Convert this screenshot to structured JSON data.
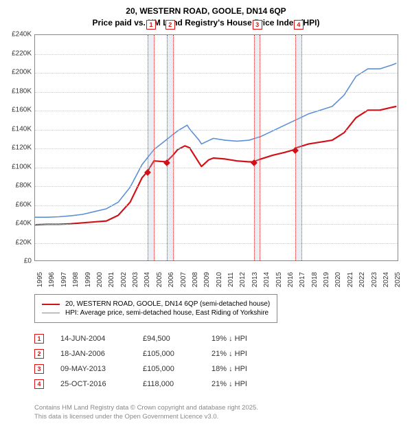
{
  "title": {
    "line1": "20, WESTERN ROAD, GOOLE, DN14 6QP",
    "line2": "Price paid vs. HM Land Registry's House Price Index (HPI)",
    "fontsize": 12
  },
  "chart": {
    "type": "line",
    "background_color": "#ffffff",
    "grid_color": "#cccccc",
    "border_color": "#888888",
    "x": {
      "min": 1995,
      "max": 2025.5,
      "ticks": [
        1995,
        1996,
        1997,
        1998,
        1999,
        2000,
        2001,
        2002,
        2003,
        2004,
        2005,
        2006,
        2007,
        2008,
        2009,
        2010,
        2011,
        2012,
        2013,
        2014,
        2015,
        2016,
        2017,
        2018,
        2019,
        2020,
        2021,
        2022,
        2023,
        2024,
        2025
      ],
      "label_fontsize": 10
    },
    "y": {
      "min": 0,
      "max": 240000,
      "ticks": [
        0,
        20000,
        40000,
        60000,
        80000,
        100000,
        120000,
        140000,
        160000,
        180000,
        200000,
        220000,
        240000
      ],
      "tick_labels": [
        "£0",
        "£20K",
        "£40K",
        "£60K",
        "£80K",
        "£100K",
        "£120K",
        "£140K",
        "£160K",
        "£180K",
        "£200K",
        "£220K",
        "£240K"
      ],
      "label_fontsize": 10
    },
    "series": [
      {
        "name": "property",
        "label": "20, WESTERN ROAD, GOOLE, DN14 6QP (semi-detached house)",
        "color": "#d11117",
        "width": 2.2,
        "points": [
          [
            1995,
            38000
          ],
          [
            1996,
            38500
          ],
          [
            1997,
            38500
          ],
          [
            1998,
            39000
          ],
          [
            1999,
            40000
          ],
          [
            2000,
            41000
          ],
          [
            2001,
            42000
          ],
          [
            2002,
            48000
          ],
          [
            2003,
            62000
          ],
          [
            2004,
            88000
          ],
          [
            2004.45,
            94500
          ],
          [
            2005,
            106000
          ],
          [
            2006.05,
            105000
          ],
          [
            2006.6,
            112000
          ],
          [
            2007,
            118000
          ],
          [
            2007.6,
            122000
          ],
          [
            2008,
            120000
          ],
          [
            2008.6,
            108000
          ],
          [
            2009,
            100000
          ],
          [
            2009.6,
            107000
          ],
          [
            2010,
            109000
          ],
          [
            2011,
            108000
          ],
          [
            2012,
            106000
          ],
          [
            2013,
            105000
          ],
          [
            2013.35,
            105000
          ],
          [
            2014,
            108000
          ],
          [
            2015,
            112000
          ],
          [
            2016,
            115000
          ],
          [
            2016.82,
            118000
          ],
          [
            2017,
            120000
          ],
          [
            2018,
            124000
          ],
          [
            2019,
            126000
          ],
          [
            2020,
            128000
          ],
          [
            2021,
            136000
          ],
          [
            2022,
            152000
          ],
          [
            2023,
            160000
          ],
          [
            2024,
            160000
          ],
          [
            2025,
            163000
          ],
          [
            2025.4,
            164000
          ]
        ],
        "markers": [
          {
            "x": 2004.45,
            "y": 94500
          },
          {
            "x": 2006.05,
            "y": 105000
          },
          {
            "x": 2013.35,
            "y": 105000
          },
          {
            "x": 2016.82,
            "y": 118000
          }
        ]
      },
      {
        "name": "hpi",
        "label": "HPI: Average price, semi-detached house, East Riding of Yorkshire",
        "color": "#5b8fd6",
        "width": 1.6,
        "points": [
          [
            1995,
            46000
          ],
          [
            1996,
            46000
          ],
          [
            1997,
            46500
          ],
          [
            1998,
            47500
          ],
          [
            1999,
            49000
          ],
          [
            2000,
            52000
          ],
          [
            2001,
            55000
          ],
          [
            2002,
            62000
          ],
          [
            2003,
            78000
          ],
          [
            2004,
            102000
          ],
          [
            2005,
            118000
          ],
          [
            2006,
            128000
          ],
          [
            2007,
            138000
          ],
          [
            2007.8,
            144000
          ],
          [
            2008,
            140000
          ],
          [
            2008.8,
            128000
          ],
          [
            2009,
            124000
          ],
          [
            2010,
            130000
          ],
          [
            2011,
            128000
          ],
          [
            2012,
            127000
          ],
          [
            2013,
            128000
          ],
          [
            2014,
            132000
          ],
          [
            2015,
            138000
          ],
          [
            2016,
            144000
          ],
          [
            2017,
            150000
          ],
          [
            2018,
            156000
          ],
          [
            2019,
            160000
          ],
          [
            2020,
            164000
          ],
          [
            2021,
            176000
          ],
          [
            2022,
            196000
          ],
          [
            2023,
            204000
          ],
          [
            2024,
            204000
          ],
          [
            2025,
            208000
          ],
          [
            2025.4,
            210000
          ]
        ]
      }
    ],
    "event_bands": [
      {
        "idx": "1",
        "x": 2004.45,
        "width_years": 0.55
      },
      {
        "idx": "2",
        "x": 2006.05,
        "width_years": 0.55
      },
      {
        "idx": "3",
        "x": 2013.35,
        "width_years": 0.55
      },
      {
        "idx": "4",
        "x": 2016.82,
        "width_years": 0.55
      }
    ],
    "band_color": "rgba(170,190,220,0.25)",
    "band_border_color": "#d33"
  },
  "legend": {
    "items": [
      {
        "color": "#d11117",
        "width": 2.2,
        "text": "20, WESTERN ROAD, GOOLE, DN14 6QP (semi-detached house)"
      },
      {
        "color": "#5b8fd6",
        "width": 1.6,
        "text": "HPI: Average price, semi-detached house, East Riding of Yorkshire"
      }
    ],
    "fontsize": 10
  },
  "sales": [
    {
      "idx": "1",
      "date": "14-JUN-2004",
      "price": "£94,500",
      "diff": "19% ↓ HPI"
    },
    {
      "idx": "2",
      "date": "18-JAN-2006",
      "price": "£105,000",
      "diff": "21% ↓ HPI"
    },
    {
      "idx": "3",
      "date": "09-MAY-2013",
      "price": "£105,000",
      "diff": "18% ↓ HPI"
    },
    {
      "idx": "4",
      "date": "25-OCT-2016",
      "price": "£118,000",
      "diff": "21% ↓ HPI"
    }
  ],
  "footer": {
    "line1": "Contains HM Land Registry data © Crown copyright and database right 2025.",
    "line2": "This data is licensed under the Open Government Licence v3.0."
  }
}
